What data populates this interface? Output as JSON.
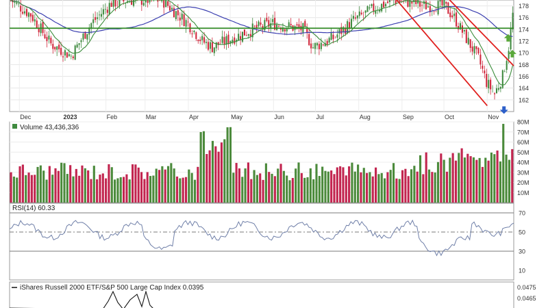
{
  "chart_data": [
    {
      "type": "candlestick",
      "panel": "price",
      "ylim": [
        160,
        179
      ],
      "y_ticks": [
        162,
        164,
        166,
        168,
        170,
        172,
        174,
        176,
        178
      ],
      "x_tick_labels": [
        "Dec",
        "2023",
        "Feb",
        "Mar",
        "Apr",
        "May",
        "Jun",
        "Jul",
        "Aug",
        "Sep",
        "Oct",
        "Nov"
      ],
      "x_tick_dates": [
        "2022-12-01",
        "2023-01-01",
        "2023-02-01",
        "2023-03-01",
        "2023-04-01",
        "2023-05-01",
        "2023-06-01",
        "2023-07-01",
        "2023-08-01",
        "2023-09-01",
        "2023-10-01",
        "2023-11-01"
      ],
      "support_line": 174.2,
      "annotations": [
        "green-up-arrow",
        "green-up-arrow",
        "blue-down-arrow"
      ],
      "colors": {
        "up": "#3f8a3f",
        "down": "#d0253a",
        "ma_short": "#3a8c3a",
        "ma_long": "#3b3fb0",
        "channel": "#e0201e",
        "support": "#2e8b22"
      }
    },
    {
      "type": "bar",
      "panel": "volume",
      "label": "Volume 43,436,336",
      "ylim": [
        0,
        80
      ],
      "unit": "M",
      "y_tick_labels": [
        "10M",
        "20M",
        "30M",
        "40M",
        "50M",
        "60M",
        "70M",
        "80M"
      ],
      "y_tick_values": [
        10,
        20,
        30,
        40,
        50,
        60,
        70,
        80
      ]
    },
    {
      "type": "line",
      "panel": "rsi",
      "label": "RSI(14) 60.33",
      "ylim": [
        0,
        80
      ],
      "y_tick_values": [
        10,
        30,
        50,
        70
      ],
      "y_tick_labels": [
        "10",
        "30",
        "50",
        "70"
      ],
      "bands": [
        30,
        50,
        70
      ]
    },
    {
      "type": "line",
      "panel": "ratio",
      "label": "iShares Russell 2000 ETF/S&P 500 Large Cap Index 0.0395",
      "y_tick_values": [
        0.0475,
        0.0465
      ],
      "y_tick_labels": [
        "0.0475",
        "0.0465"
      ]
    }
  ]
}
